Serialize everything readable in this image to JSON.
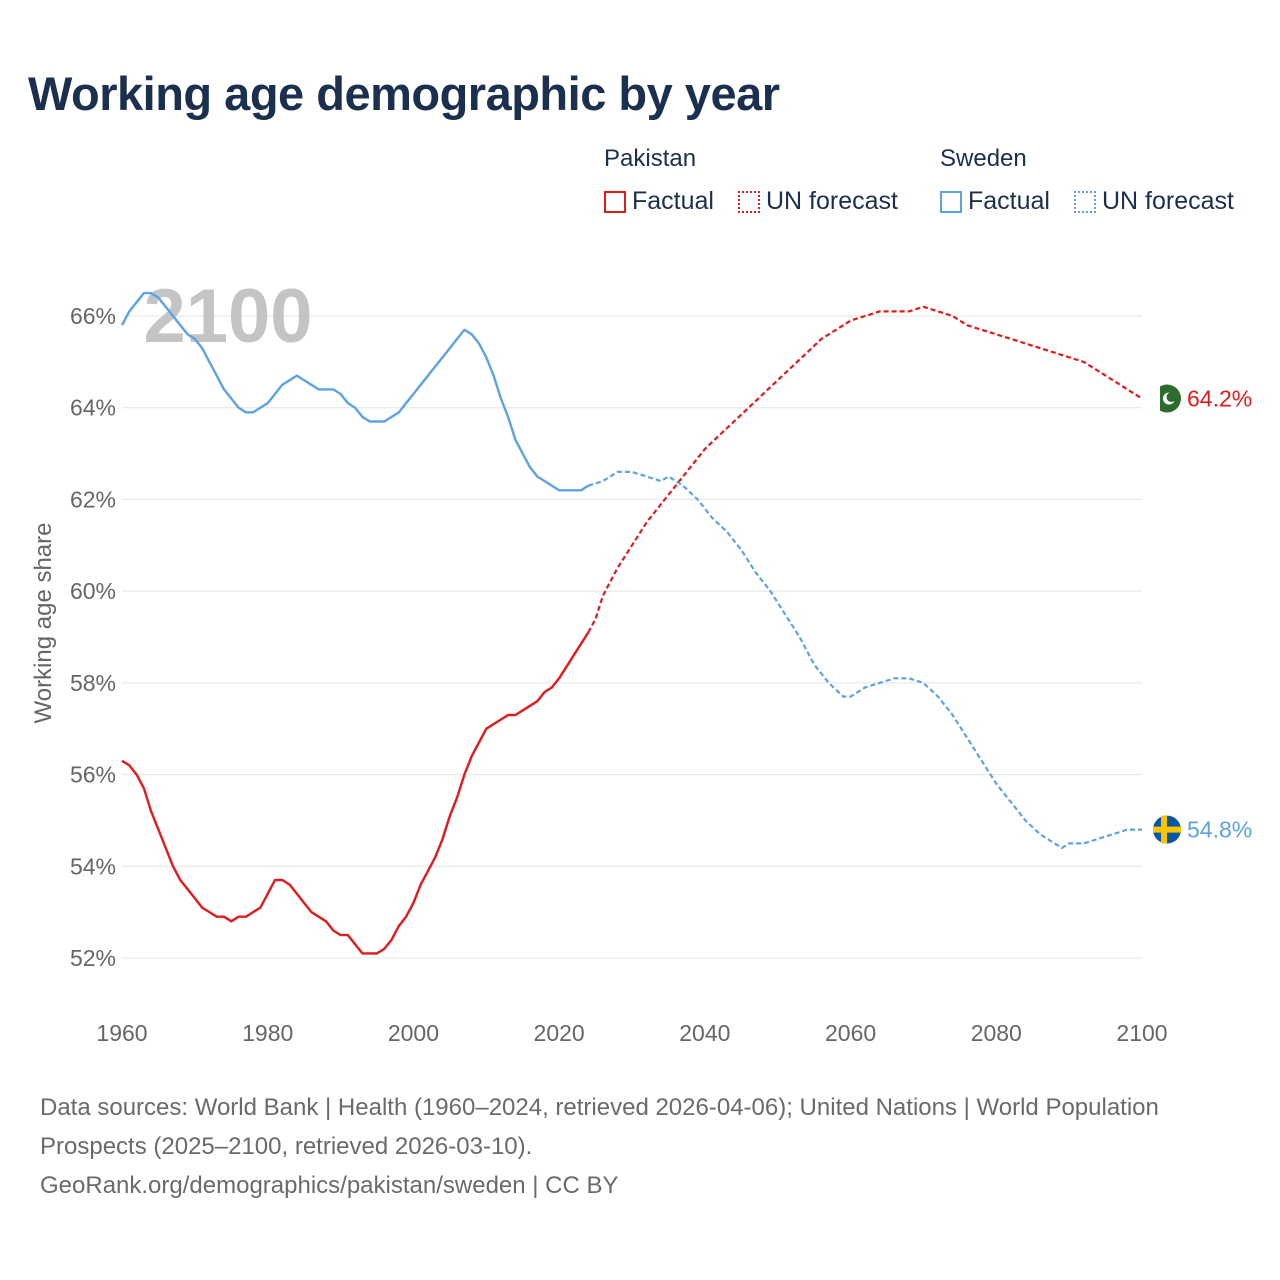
{
  "chart_data": {
    "type": "line",
    "title": "Working age demographic by year",
    "ylabel": "Working age share",
    "xlabel": "",
    "xlim": [
      1960,
      2100
    ],
    "ylim": [
      51,
      67.5
    ],
    "x_ticks": [
      1960,
      1980,
      2000,
      2020,
      2040,
      2060,
      2080,
      2100
    ],
    "x_tick_labels": [
      "1960",
      "1980",
      "2000",
      "2020",
      "2040",
      "2060",
      "2080",
      "2100"
    ],
    "y_ticks": [
      52,
      54,
      56,
      58,
      60,
      62,
      64,
      66
    ],
    "y_tick_labels": [
      "52%",
      "54%",
      "56%",
      "58%",
      "60%",
      "62%",
      "64%",
      "66%"
    ],
    "grid": "horizontal",
    "year_overlay": "2100",
    "legend": {
      "placement": "top-right",
      "groups": [
        {
          "name": "Pakistan",
          "items": [
            "Factual",
            "UN forecast"
          ]
        },
        {
          "name": "Sweden",
          "items": [
            "Factual",
            "UN forecast"
          ]
        }
      ]
    },
    "series": [
      {
        "name": "Pakistan",
        "color": "#e31a1c",
        "end_label": "64.2%",
        "end_icon": "pakistan-flag-icon",
        "factual_x": [
          1960,
          1961,
          1962,
          1963,
          1964,
          1965,
          1966,
          1967,
          1968,
          1970,
          1971,
          1972,
          1973,
          1974,
          1975,
          1976,
          1977,
          1978,
          1979,
          1980,
          1981,
          1982,
          1983,
          1984,
          1985,
          1986,
          1987,
          1988,
          1989,
          1990,
          1991,
          1992,
          1993,
          1994,
          1995,
          1996,
          1997,
          1998,
          1999,
          2000,
          2001,
          2002,
          2003,
          2004,
          2005,
          2006,
          2007,
          2008,
          2009,
          2010,
          2012,
          2013,
          2014,
          2016,
          2017,
          2018,
          2019,
          2020,
          2022,
          2024
        ],
        "factual_y": [
          56.3,
          56.2,
          56.0,
          55.7,
          55.2,
          54.8,
          54.4,
          54.0,
          53.7,
          53.3,
          53.1,
          53.0,
          52.9,
          52.9,
          52.8,
          52.9,
          52.9,
          53.0,
          53.1,
          53.4,
          53.7,
          53.7,
          53.6,
          53.4,
          53.2,
          53.0,
          52.9,
          52.8,
          52.6,
          52.5,
          52.5,
          52.3,
          52.1,
          52.1,
          52.1,
          52.2,
          52.4,
          52.7,
          52.9,
          53.2,
          53.6,
          53.9,
          54.2,
          54.6,
          55.1,
          55.5,
          56.0,
          56.4,
          56.7,
          57.0,
          57.2,
          57.3,
          57.3,
          57.5,
          57.6,
          57.8,
          57.9,
          58.1,
          58.6,
          59.1
        ],
        "forecast_x": [
          2024,
          2025,
          2026,
          2028,
          2030,
          2032,
          2034,
          2036,
          2038,
          2040,
          2042,
          2044,
          2046,
          2048,
          2050,
          2052,
          2054,
          2056,
          2058,
          2060,
          2062,
          2064,
          2066,
          2068,
          2070,
          2072,
          2074,
          2076,
          2078,
          2080,
          2082,
          2084,
          2086,
          2088,
          2090,
          2092,
          2094,
          2096,
          2098,
          2100
        ],
        "forecast_y": [
          59.1,
          59.4,
          59.9,
          60.5,
          61.0,
          61.5,
          61.9,
          62.3,
          62.7,
          63.1,
          63.4,
          63.7,
          64.0,
          64.3,
          64.6,
          64.9,
          65.2,
          65.5,
          65.7,
          65.9,
          66.0,
          66.1,
          66.1,
          66.1,
          66.2,
          66.1,
          66.0,
          65.8,
          65.7,
          65.6,
          65.5,
          65.4,
          65.3,
          65.2,
          65.1,
          65.0,
          64.8,
          64.6,
          64.4,
          64.2
        ]
      },
      {
        "name": "Sweden",
        "color": "#5da3e3",
        "end_label": "54.8%",
        "end_icon": "sweden-flag-icon",
        "factual_x": [
          1960,
          1961,
          1962,
          1963,
          1964,
          1965,
          1966,
          1967,
          1968,
          1969,
          1970,
          1971,
          1972,
          1973,
          1974,
          1975,
          1976,
          1977,
          1978,
          1979,
          1980,
          1981,
          1982,
          1983,
          1984,
          1985,
          1986,
          1987,
          1988,
          1989,
          1990,
          1991,
          1992,
          1993,
          1994,
          1995,
          1996,
          1997,
          1998,
          1999,
          2000,
          2001,
          2002,
          2003,
          2004,
          2005,
          2006,
          2007,
          2008,
          2009,
          2010,
          2011,
          2012,
          2013,
          2014,
          2015,
          2016,
          2017,
          2018,
          2019,
          2020,
          2021,
          2022,
          2023,
          2024
        ],
        "factual_y": [
          65.8,
          66.1,
          66.3,
          66.5,
          66.5,
          66.4,
          66.2,
          66.0,
          65.8,
          65.6,
          65.5,
          65.3,
          65.0,
          64.7,
          64.4,
          64.2,
          64.0,
          63.9,
          63.9,
          64.0,
          64.1,
          64.3,
          64.5,
          64.6,
          64.7,
          64.6,
          64.5,
          64.4,
          64.4,
          64.4,
          64.3,
          64.1,
          64.0,
          63.8,
          63.7,
          63.7,
          63.7,
          63.8,
          63.9,
          64.1,
          64.3,
          64.5,
          64.7,
          64.9,
          65.1,
          65.3,
          65.5,
          65.7,
          65.6,
          65.4,
          65.1,
          64.7,
          64.2,
          63.8,
          63.3,
          63.0,
          62.7,
          62.5,
          62.4,
          62.3,
          62.2,
          62.2,
          62.2,
          62.2,
          62.3
        ],
        "forecast_x": [
          2024,
          2026,
          2028,
          2030,
          2032,
          2034,
          2035,
          2037,
          2039,
          2041,
          2043,
          2045,
          2047,
          2049,
          2051,
          2053,
          2055,
          2057,
          2059,
          2060,
          2062,
          2064,
          2066,
          2068,
          2070,
          2072,
          2074,
          2076,
          2078,
          2080,
          2082,
          2084,
          2086,
          2088,
          2089,
          2090,
          2092,
          2094,
          2096,
          2098,
          2100
        ],
        "forecast_y": [
          62.3,
          62.4,
          62.6,
          62.6,
          62.5,
          62.4,
          62.5,
          62.3,
          62.0,
          61.6,
          61.3,
          60.9,
          60.4,
          60.0,
          59.5,
          59.0,
          58.4,
          58.0,
          57.7,
          57.7,
          57.9,
          58.0,
          58.1,
          58.1,
          58.0,
          57.7,
          57.3,
          56.8,
          56.3,
          55.8,
          55.4,
          55.0,
          54.7,
          54.5,
          54.4,
          54.5,
          54.5,
          54.6,
          54.7,
          54.8,
          54.8
        ]
      }
    ]
  },
  "legend_labels": {
    "pakistan": "Pakistan",
    "sweden": "Sweden",
    "factual": "Factual",
    "forecast": "UN forecast"
  },
  "footer": {
    "sources": "Data sources: World Bank | Health (1960–2024, retrieved 2026-04-06); United Nations | World Population Prospects (2025–2100, retrieved 2026-03-10).",
    "credit": "GeoRank.org/demographics/pakistan/sweden | CC BY"
  }
}
